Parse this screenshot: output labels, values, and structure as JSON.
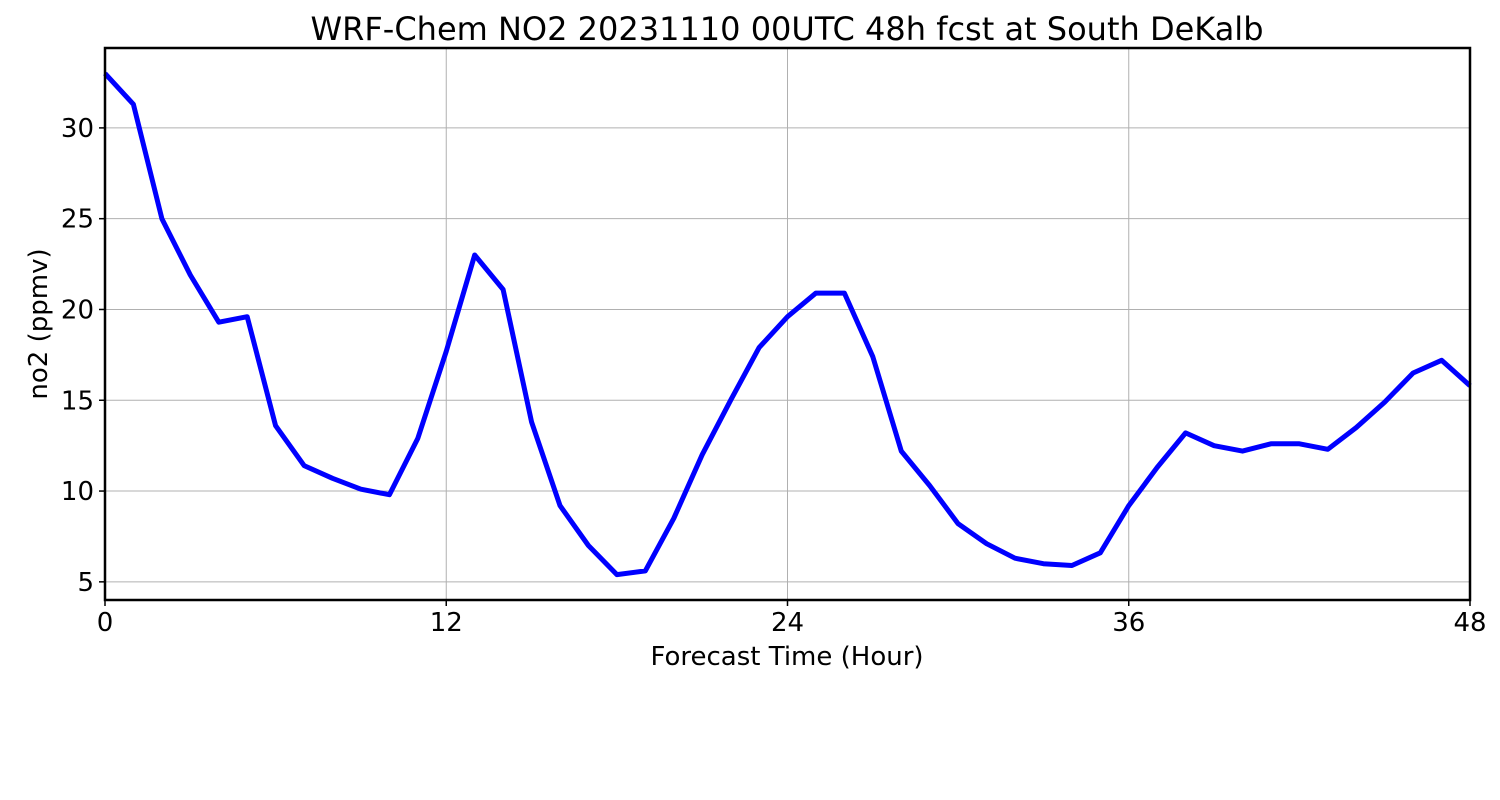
{
  "chart_data": {
    "type": "line",
    "title": "WRF-Chem NO2  20231110 00UTC 48h fcst at South DeKalb",
    "xlabel": "Forecast Time (Hour)",
    "ylabel": "no2  (ppmv)",
    "xlim": [
      0,
      48
    ],
    "ylim": [
      4,
      34.4
    ],
    "xticks": [
      0,
      12,
      24,
      36,
      48
    ],
    "yticks": [
      5,
      10,
      15,
      20,
      25,
      30
    ],
    "grid": true,
    "line_color": "#0000ff",
    "series": [
      {
        "x": [
          0,
          1,
          2,
          3,
          4,
          5,
          6,
          7,
          8,
          9,
          10,
          11,
          12,
          13,
          14,
          15,
          16,
          17,
          18,
          19,
          20,
          21,
          22,
          23,
          24,
          25,
          26,
          27,
          28,
          29,
          30,
          31,
          32,
          33,
          34,
          35,
          36,
          37,
          38,
          39,
          40,
          41,
          42,
          43,
          44,
          45,
          46,
          47,
          48
        ],
        "values": [
          33.0,
          31.3,
          25.0,
          21.9,
          19.3,
          19.6,
          13.6,
          11.4,
          10.7,
          10.1,
          9.8,
          12.9,
          17.7,
          23.0,
          21.1,
          13.8,
          9.2,
          7.0,
          5.4,
          5.6,
          8.5,
          12.0,
          15.0,
          17.9,
          19.6,
          20.9,
          20.9,
          17.4,
          12.2,
          10.3,
          8.2,
          7.1,
          6.3,
          6.0,
          5.9,
          6.6,
          9.2,
          11.3,
          13.2,
          12.5,
          12.2,
          12.6,
          12.6,
          12.3,
          13.5,
          14.9,
          16.5,
          17.2,
          15.8
        ]
      }
    ]
  }
}
